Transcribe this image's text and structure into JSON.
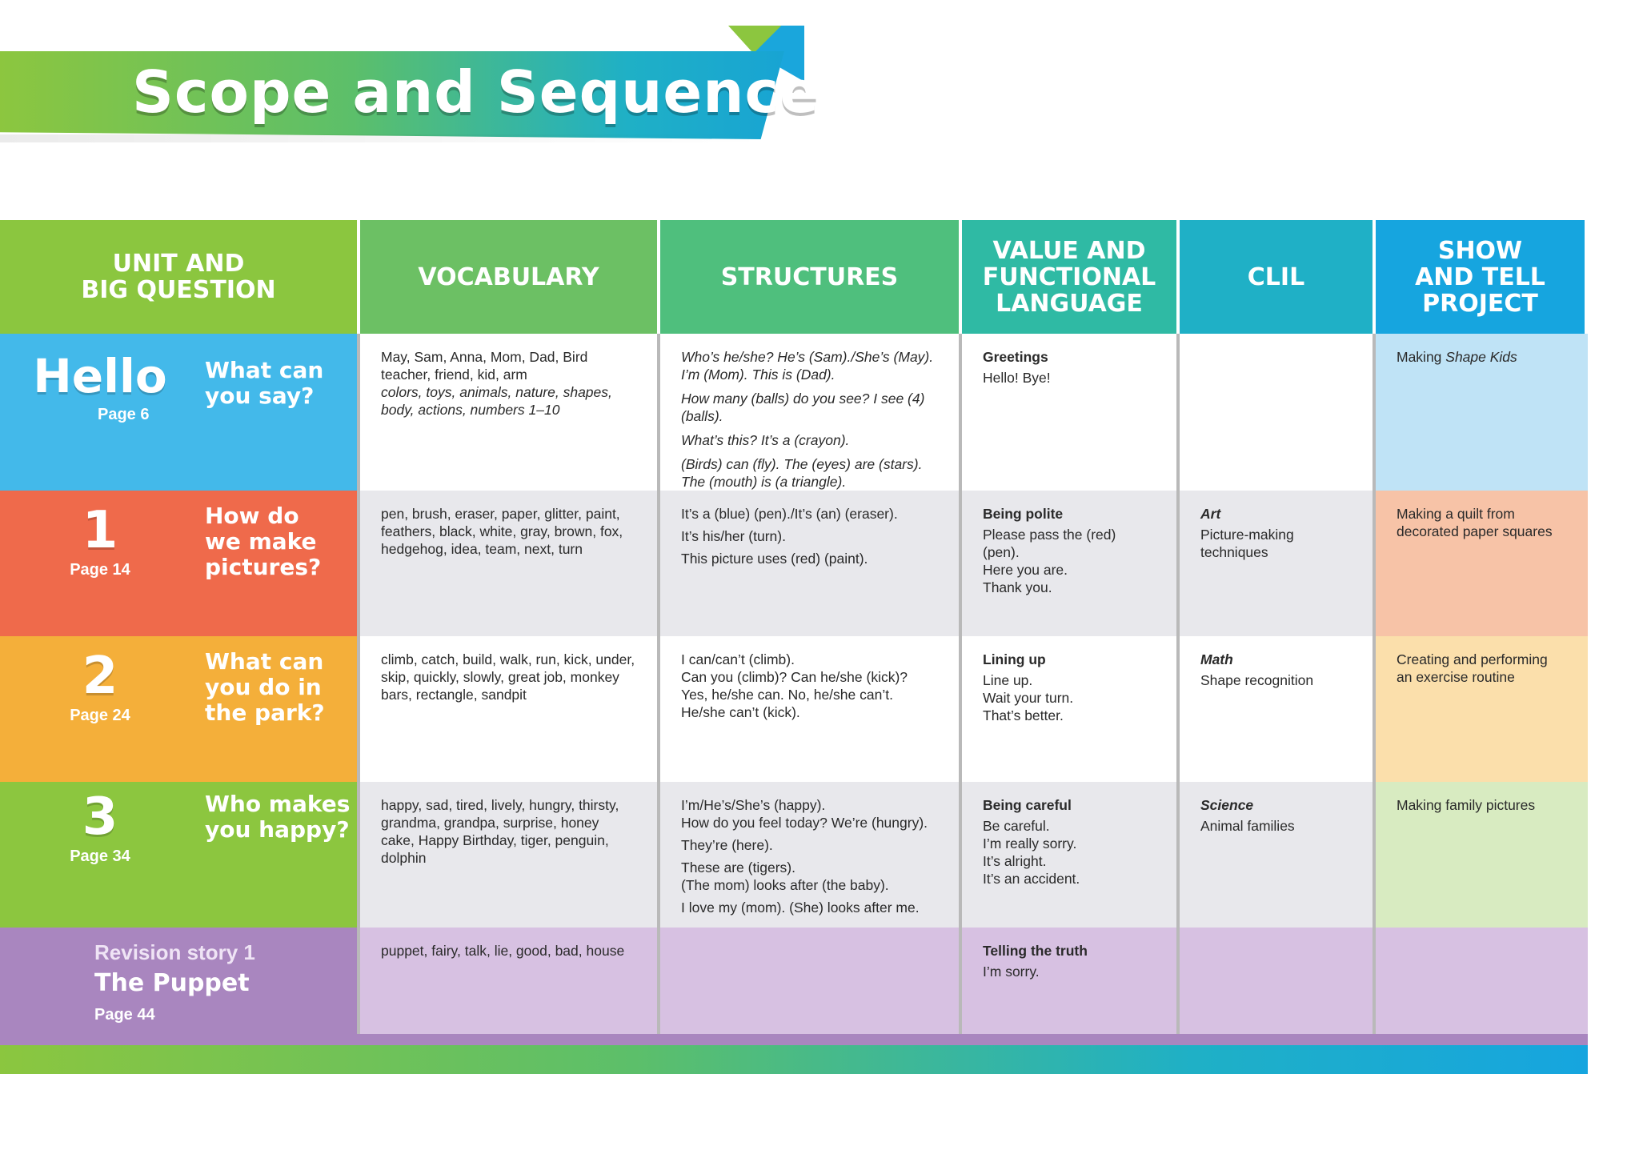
{
  "page_title": "Scope and Sequence",
  "headers": [
    "UNIT AND\nBIG QUESTION",
    "VOCABULARY",
    "STRUCTURES",
    "VALUE AND\nFUNCTIONAL\nLANGUAGE",
    "CLIL",
    "SHOW\nAND TELL\nPROJECT"
  ],
  "rows": [
    {
      "unit": "Hello",
      "page": "Page 6",
      "question": "What can\nyou say?",
      "vocab": {
        "plain": "May, Sam, Anna, Mom, Dad, Bird\nteacher, friend, kid, arm",
        "italic": "colors, toys, animals, nature, shapes, body, actions, numbers 1–10"
      },
      "structures": [
        "Who’s he/she? He’s (Sam)./She’s (May).\nI’m (Mom). This is (Dad).",
        "How many (balls) do you see? I see (4) (balls).",
        "What’s this? It’s a (crayon).",
        "(Birds) can (fly). The (eyes) are (stars).\nThe (mouth) is (a triangle)."
      ],
      "value_title": "Greetings",
      "value_lines": "Hello! Bye!",
      "clil_title": "",
      "clil_text": "",
      "project_prefix": "Making ",
      "project_italic": "Shape Kids"
    },
    {
      "unit": "1",
      "page": "Page 14",
      "question": "How do\nwe make\npictures?",
      "vocab_text": "pen, brush, eraser, paper, glitter, paint, feathers, black, white, gray, brown, fox, hedgehog, idea, team, next, turn",
      "structures": [
        "It’s a (blue) (pen)./It’s (an) (eraser).",
        "It’s his/her (turn).",
        "This picture uses (red) (paint)."
      ],
      "value_title": "Being polite",
      "value_lines": "Please pass the (red) (pen).\nHere you are.\nThank you.",
      "clil_title": "Art",
      "clil_text": "Picture-making\ntechniques",
      "project": "Making a quilt from\ndecorated paper squares"
    },
    {
      "unit": "2",
      "page": "Page 24",
      "question": "What can\nyou do in\nthe park?",
      "vocab_text": "climb, catch, build, walk, run, kick, under, skip, quickly, slowly, great job, monkey bars, rectangle, sandpit",
      "structures": [
        "I can/can’t (climb).\nCan you (climb)? Can he/she (kick)?\nYes, he/she can. No, he/she can’t.\nHe/she can’t (kick)."
      ],
      "value_title": "Lining up",
      "value_lines": "Line up.\nWait your turn.\nThat’s better.",
      "clil_title": "Math",
      "clil_text": "Shape recognition",
      "project": "Creating and performing\nan exercise routine"
    },
    {
      "unit": "3",
      "page": "Page 34",
      "question": "Who makes\nyou happy?",
      "vocab_text": "happy, sad, tired, lively, hungry, thirsty, grandma, grandpa, surprise, honey cake, Happy Birthday, tiger, penguin, dolphin",
      "structures": [
        "I’m/He’s/She’s (happy).\nHow do you feel today? We’re (hungry).",
        "They’re (here).",
        "These are (tigers).\n(The mom) looks after (the baby).",
        "I love my (mom). (She) looks after me."
      ],
      "value_title": "Being careful",
      "value_lines": "Be careful.\nI’m really sorry.\nIt’s alright.\nIt’s an accident.",
      "clil_title": "Science",
      "clil_text": "Animal families",
      "project": "Making family pictures"
    },
    {
      "revision_label": "Revision story 1",
      "revision_title": "The Puppet",
      "page": "Page 44",
      "vocab_text": "puppet, fairy, talk, lie, good, bad, house",
      "value_title": "Telling the truth",
      "value_lines": "I’m sorry."
    }
  ]
}
